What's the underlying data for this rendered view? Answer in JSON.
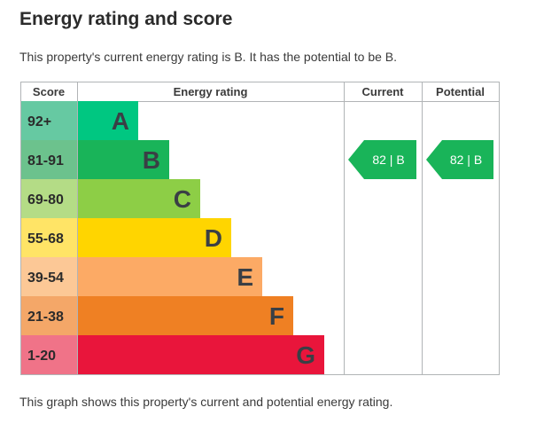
{
  "title": "Energy rating and score",
  "intro": "This property's current energy rating is B. It has the potential to be B.",
  "footer": "This graph shows this property's current and potential energy rating.",
  "chart_data": {
    "type": "bar",
    "headers": {
      "score": "Score",
      "rating": "Energy rating",
      "current": "Current",
      "potential": "Potential"
    },
    "bands": [
      {
        "range": "92+",
        "letter": "A",
        "min": 92,
        "max": 100,
        "color": "#00c781",
        "score_bg": "#66c9a2"
      },
      {
        "range": "81-91",
        "letter": "B",
        "min": 81,
        "max": 91,
        "color": "#19b459",
        "score_bg": "#6cc28d"
      },
      {
        "range": "69-80",
        "letter": "C",
        "min": 69,
        "max": 80,
        "color": "#8dce46",
        "score_bg": "#b4dc86"
      },
      {
        "range": "55-68",
        "letter": "D",
        "min": 55,
        "max": 68,
        "color": "#ffd500",
        "score_bg": "#ffe466"
      },
      {
        "range": "39-54",
        "letter": "E",
        "min": 39,
        "max": 54,
        "color": "#fcaa65",
        "score_bg": "#fcc896"
      },
      {
        "range": "21-38",
        "letter": "F",
        "min": 21,
        "max": 38,
        "color": "#ef8023",
        "score_bg": "#f4a768"
      },
      {
        "range": "1-20",
        "letter": "G",
        "min": 1,
        "max": 20,
        "color": "#e9153b",
        "score_bg": "#f07388"
      }
    ],
    "current": {
      "score": 82,
      "letter": "B",
      "label": "82 | B",
      "color": "#19b459"
    },
    "potential": {
      "score": 82,
      "letter": "B",
      "label": "82 | B",
      "color": "#19b459"
    }
  }
}
